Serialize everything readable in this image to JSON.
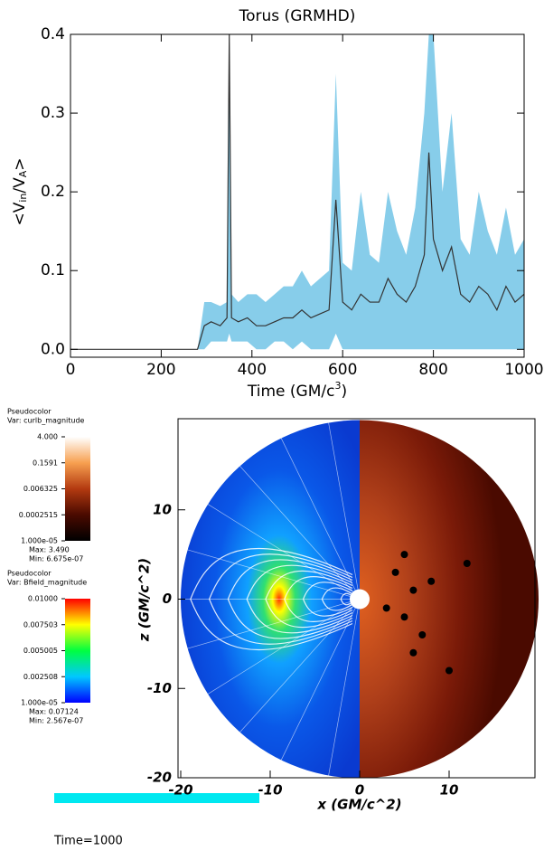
{
  "chart_data": [
    {
      "type": "band-line",
      "title": "Torus (GRMHD)",
      "x_label": [
        "Time (GM/c",
        "3",
        ")"
      ],
      "y_label": [
        "<V",
        "in",
        "/V",
        "A",
        ">"
      ],
      "x": [
        0,
        280,
        295,
        310,
        330,
        345,
        350,
        355,
        370,
        390,
        410,
        430,
        450,
        470,
        490,
        510,
        530,
        550,
        570,
        585,
        600,
        620,
        640,
        660,
        680,
        700,
        720,
        740,
        760,
        780,
        790,
        800,
        820,
        840,
        860,
        880,
        900,
        920,
        940,
        960,
        980,
        1000
      ],
      "values": [
        0,
        0,
        0.03,
        0.035,
        0.03,
        0.04,
        0.4,
        0.04,
        0.035,
        0.04,
        0.03,
        0.03,
        0.035,
        0.04,
        0.04,
        0.05,
        0.04,
        0.045,
        0.05,
        0.19,
        0.06,
        0.05,
        0.07,
        0.06,
        0.06,
        0.09,
        0.07,
        0.06,
        0.08,
        0.12,
        0.25,
        0.14,
        0.1,
        0.13,
        0.07,
        0.06,
        0.08,
        0.07,
        0.05,
        0.08,
        0.06,
        0.07
      ],
      "low": [
        0,
        0,
        0,
        0.01,
        0.01,
        0.01,
        0.02,
        0.01,
        0.01,
        0.01,
        0,
        0,
        0.01,
        0.01,
        0,
        0.01,
        0,
        0,
        0,
        0.02,
        0,
        0,
        0,
        0,
        0,
        0,
        0,
        0,
        0,
        0,
        0,
        0,
        0,
        0,
        0,
        0,
        0,
        0,
        0,
        0,
        0,
        0
      ],
      "high": [
        0,
        0,
        0.06,
        0.06,
        0.055,
        0.06,
        0.4,
        0.07,
        0.06,
        0.07,
        0.07,
        0.06,
        0.07,
        0.08,
        0.08,
        0.1,
        0.08,
        0.09,
        0.1,
        0.35,
        0.11,
        0.1,
        0.2,
        0.12,
        0.11,
        0.2,
        0.15,
        0.12,
        0.18,
        0.3,
        0.4,
        0.4,
        0.2,
        0.3,
        0.14,
        0.12,
        0.2,
        0.15,
        0.12,
        0.18,
        0.12,
        0.14
      ],
      "color": "#333333",
      "band_color": "#87cdea",
      "xlim": [
        0,
        1000
      ],
      "xticks": [
        0,
        200,
        400,
        600,
        800,
        1000
      ],
      "ylim": [
        -0.01,
        0.4
      ],
      "yticks": [
        {
          "value": 0,
          "label": "0.0"
        },
        0.1,
        0.2,
        0.3,
        0.4
      ]
    },
    {
      "type": "pseudocolor",
      "x_label": "x (GM/c^2)",
      "y_label": "z (GM/c^2)",
      "xlim": [
        -20,
        20
      ],
      "xticks": [
        -20,
        -10,
        0,
        10
      ],
      "ylim": [
        -20,
        20
      ],
      "yticks": [
        -20,
        -10,
        0,
        10
      ],
      "colorbars": [
        {
          "title": "Pseudocolor",
          "var": "Var: curlb_magnitude",
          "ticks": [
            "4.000",
            "0.1591",
            "0.006325",
            "0.0002515",
            "1.000e-05"
          ],
          "max": "Max: 3.490",
          "min": "Min: 6.675e-07",
          "colors": [
            "#ffffff",
            "#f7a050",
            "#b33a10",
            "#4a0a00",
            "#000000"
          ]
        },
        {
          "title": "Pseudocolor",
          "var": "Var: Bfield_magnitude",
          "ticks": [
            "0.01000",
            "0.007503",
            "0.005005",
            "0.002508",
            "1.000e-05"
          ],
          "max": "Max: 0.07124",
          "min": "Min: 2.567e-07",
          "colors": [
            "#ff0000",
            "#ffff00",
            "#00ff40",
            "#00c8ff",
            "#0000ff"
          ]
        }
      ]
    }
  ],
  "footer": {
    "time_label": "Time=1000"
  }
}
